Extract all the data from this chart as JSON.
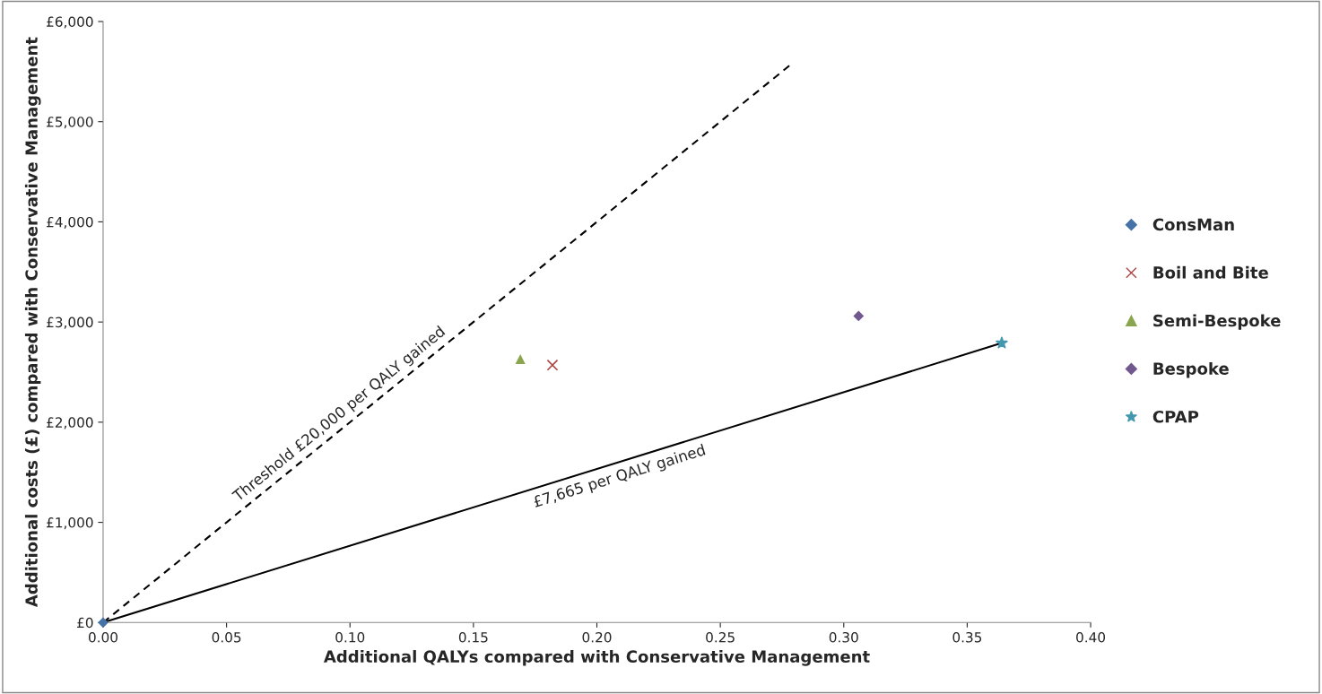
{
  "chart_data": {
    "type": "scatter",
    "xlabel": "Additional QALYs compared with Conservative Management",
    "ylabel": "Additional costs (£) compared with Conservative Management",
    "xlim": [
      0,
      0.4
    ],
    "ylim": [
      0,
      6000
    ],
    "xticks": [
      {
        "value": 0,
        "label": "0.00"
      },
      {
        "value": 0.05,
        "label": "0.05"
      },
      {
        "value": 0.1,
        "label": "0.10"
      },
      {
        "value": 0.15,
        "label": "0.15"
      },
      {
        "value": 0.2,
        "label": "0.20"
      },
      {
        "value": 0.25,
        "label": "0.25"
      },
      {
        "value": 0.3,
        "label": "0.30"
      },
      {
        "value": 0.35,
        "label": "0.35"
      },
      {
        "value": 0.4,
        "label": "0.40"
      }
    ],
    "yticks": [
      {
        "value": 0,
        "label": "£0"
      },
      {
        "value": 1000,
        "label": "£1,000"
      },
      {
        "value": 2000,
        "label": "£2,000"
      },
      {
        "value": 3000,
        "label": "£3,000"
      },
      {
        "value": 4000,
        "label": "£4,000"
      },
      {
        "value": 5000,
        "label": "£5,000"
      },
      {
        "value": 6000,
        "label": "£6,000"
      }
    ],
    "grid": false,
    "legend": "right",
    "series": [
      {
        "type": "line",
        "x": [
          0,
          0.279
        ],
        "values": [
          0,
          5580
        ],
        "color": "#000000",
        "line_style": "dashed",
        "marker": "none"
      },
      {
        "type": "line",
        "x": [
          0,
          0.364
        ],
        "values": [
          0,
          2790
        ],
        "color": "#000000",
        "line_style": "solid",
        "marker": "none"
      },
      {
        "name": "ConsMan",
        "x": [
          0
        ],
        "values": [
          0
        ],
        "color": "#4572a7",
        "marker": "diamond"
      },
      {
        "name": "Boil and Bite",
        "x": [
          0.182
        ],
        "values": [
          2570
        ],
        "color": "#aa4643",
        "marker": "cross"
      },
      {
        "name": "Semi-Bespoke",
        "x": [
          0.169
        ],
        "values": [
          2630
        ],
        "color": "#89a54e",
        "marker": "triangle"
      },
      {
        "name": "Bespoke",
        "x": [
          0.306
        ],
        "values": [
          3060
        ],
        "color": "#71588f",
        "marker": "diamond"
      },
      {
        "name": "CPAP",
        "x": [
          0.364
        ],
        "values": [
          2790
        ],
        "color": "#4198af",
        "marker": "star"
      }
    ],
    "annotations": [
      "Threshold £20,000 per QALY gained",
      "£7,665 per QALY gained"
    ]
  }
}
